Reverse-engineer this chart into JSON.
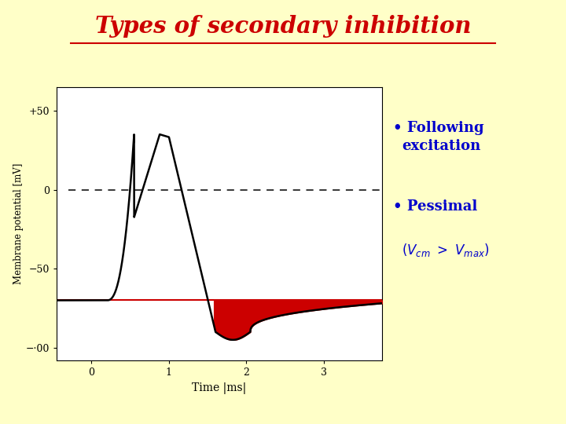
{
  "bg_color": "#FFFFC8",
  "title": "Types of secondary inhibition",
  "title_color": "#CC0000",
  "title_fontsize": 21,
  "graph_bg": "#FFFFFF",
  "xlabel": "Time |ms|",
  "ylabel": "Membrane potential [mV]",
  "xlim": [
    -0.45,
    3.75
  ],
  "ylim": [
    -108,
    65
  ],
  "resting_potential": -70,
  "red_fill_color": "#CC0000",
  "bullet_color": "#0000CC",
  "ap_peak": 35,
  "following_text_line1": "• Following",
  "following_text_line2": "excitation",
  "pessimal_text": "• Pessimal"
}
